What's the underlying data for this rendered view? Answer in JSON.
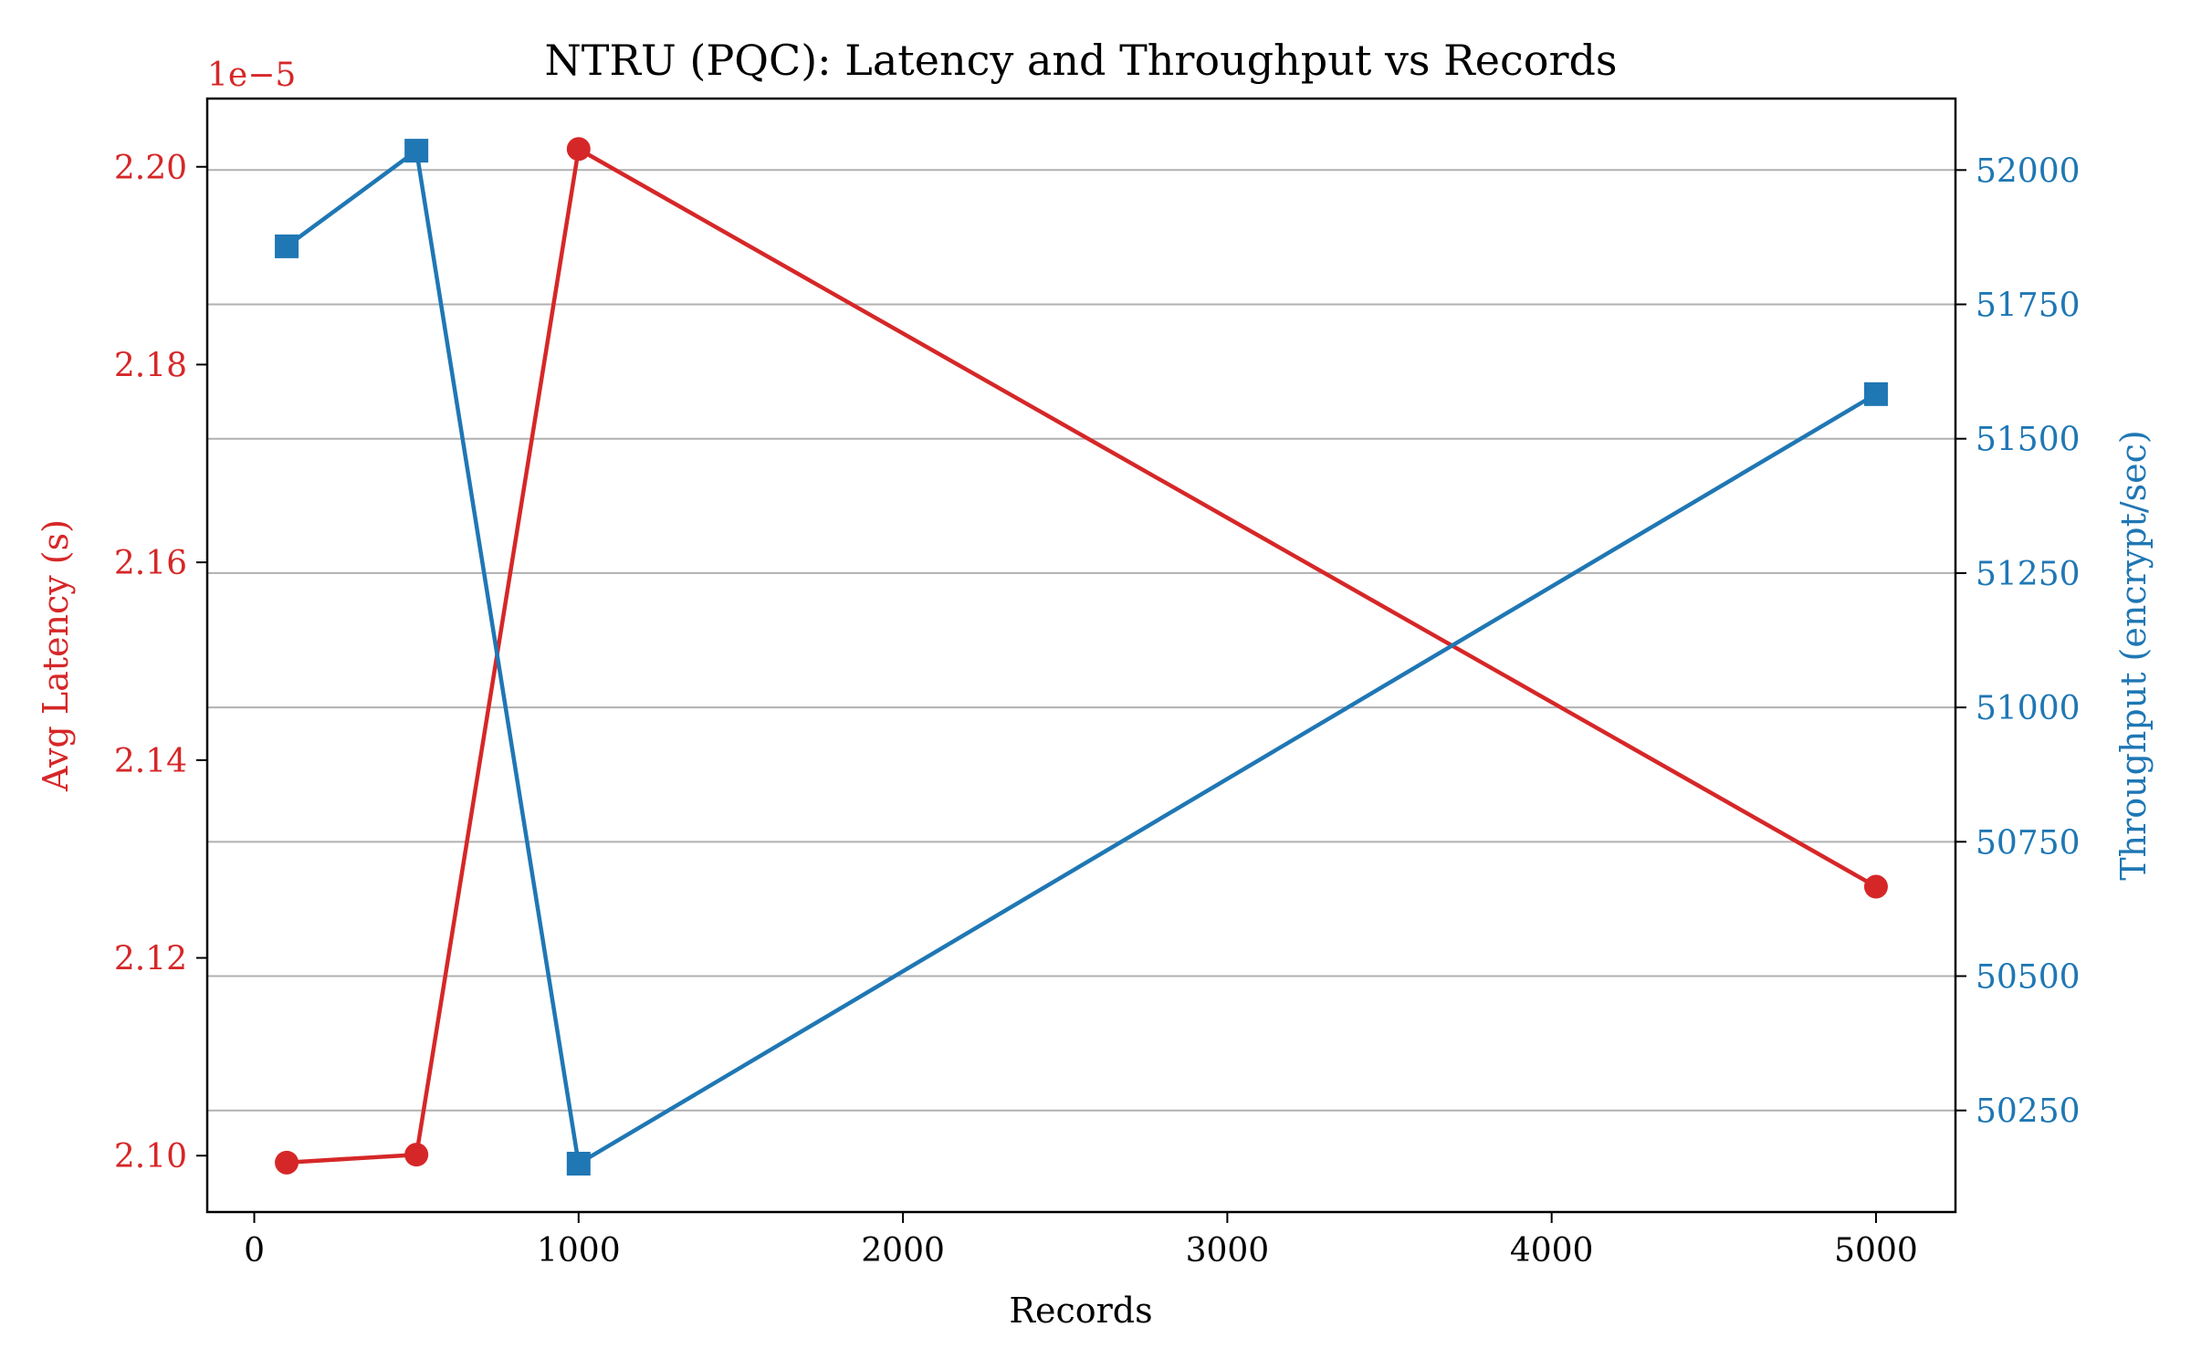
{
  "chart_data": {
    "type": "line",
    "title": "NTRU (PQC): Latency and Throughput vs Records",
    "xlabel": "Records",
    "ylabel_left": "Avg Latency (s)",
    "ylabel_right": "Throughput (encrypt/sec)",
    "left_axis_offset_text": "1e−5",
    "x": [
      100,
      500,
      1000,
      5000
    ],
    "x_ticks": [
      0,
      1000,
      2000,
      3000,
      4000,
      5000
    ],
    "x_tick_labels": [
      "0",
      "1000",
      "2000",
      "3000",
      "4000",
      "5000"
    ],
    "xlim": [
      -145,
      5245
    ],
    "left_ticks": [
      2.1,
      2.12,
      2.14,
      2.16,
      2.18,
      2.2
    ],
    "left_tick_labels": [
      "2.10",
      "2.12",
      "2.14",
      "2.16",
      "2.18",
      "2.20"
    ],
    "left_ylim": [
      2.0943,
      2.2069
    ],
    "right_ticks": [
      50250,
      50500,
      50750,
      51000,
      51250,
      51500,
      51750,
      52000
    ],
    "right_tick_labels": [
      "50250",
      "50500",
      "50750",
      "51000",
      "51250",
      "51500",
      "51750",
      "52000"
    ],
    "right_ylim": [
      50061,
      52133
    ],
    "grid": "horizontal, right axis",
    "series": [
      {
        "axis": "left",
        "marker": "circle",
        "color": "#d62728",
        "values": [
          2.0993,
          2.1001,
          2.2018,
          2.1272
        ]
      },
      {
        "axis": "right",
        "marker": "square",
        "color": "#1f77b4",
        "values": [
          51858,
          52036,
          50151,
          51583
        ]
      }
    ],
    "colors": {
      "latency": "#d62728",
      "throughput": "#1f77b4",
      "grid": "#b0b0b0",
      "axes": "#000000"
    }
  }
}
